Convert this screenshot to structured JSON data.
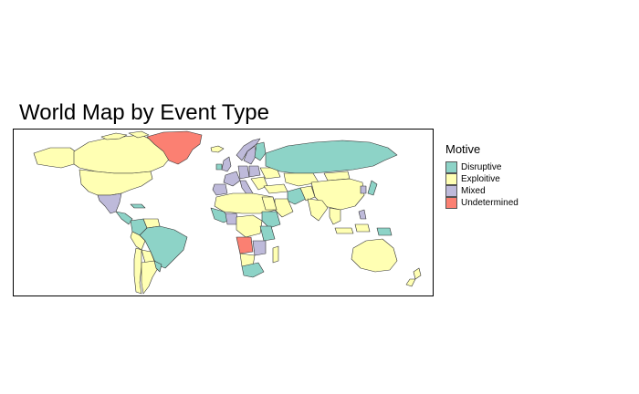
{
  "title": "World Map by Event Type",
  "legend": {
    "title": "Motive",
    "items": [
      {
        "label": "Disruptive",
        "color": "#8dd3c7"
      },
      {
        "label": "Exploitive",
        "color": "#ffffb3"
      },
      {
        "label": "Mixed",
        "color": "#bebada"
      },
      {
        "label": "Undetermined",
        "color": "#fb8072"
      }
    ]
  }
}
